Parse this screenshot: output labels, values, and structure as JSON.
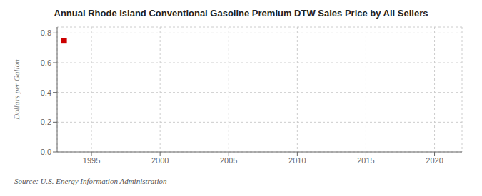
{
  "chart_data": {
    "type": "scatter",
    "title": "Annual Rhode Island Conventional Gasoline Premium DTW Sales Price by All Sellers",
    "ylabel": "Dollars per Gallon",
    "annotations": [
      "Source: U.S. Energy Information Administration"
    ],
    "x": [
      1993
    ],
    "values": [
      0.748
    ],
    "color": "#cc0000",
    "marker": "square",
    "xlim": [
      1992.5,
      2022
    ],
    "xticks": [
      1995,
      2000,
      2005,
      2010,
      2015,
      2020
    ],
    "ylim": [
      0.0,
      0.84
    ],
    "yticks": [
      {
        "value": 0.0,
        "label": "0.0"
      },
      0.2,
      0.4,
      0.6,
      0.8
    ],
    "grid": true
  }
}
